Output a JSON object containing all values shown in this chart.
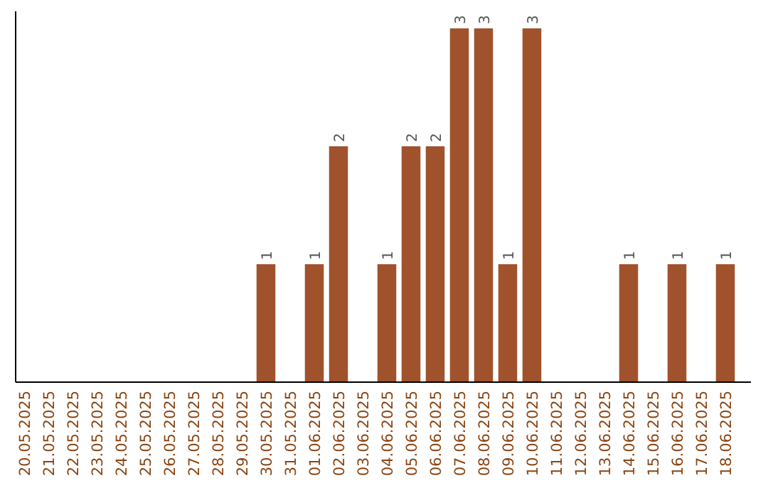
{
  "chart_data": {
    "type": "bar",
    "categories": [
      "20.05.2025",
      "21.05.2025",
      "22.05.2025",
      "23.05.2025",
      "24.05.2025",
      "25.05.2025",
      "26.05.2025",
      "27.05.2025",
      "28.05.2025",
      "29.05.2025",
      "30.05.2025",
      "31.05.2025",
      "01.06.2025",
      "02.06.2025",
      "03.06.2025",
      "04.06.2025",
      "05.06.2025",
      "06.06.2025",
      "07.06.2025",
      "08.06.2025",
      "09.06.2025",
      "10.06.2025",
      "11.06.2025",
      "12.06.2025",
      "13.06.2025",
      "14.06.2025",
      "15.06.2025",
      "16.06.2025",
      "17.06.2025",
      "18.06.2025"
    ],
    "values": [
      null,
      null,
      null,
      null,
      null,
      null,
      null,
      null,
      null,
      null,
      1,
      null,
      1,
      2,
      null,
      1,
      2,
      2,
      3,
      3,
      1,
      3,
      null,
      null,
      null,
      1,
      null,
      1,
      null,
      1
    ],
    "color": "#a0522d",
    "data_labels": true
  }
}
